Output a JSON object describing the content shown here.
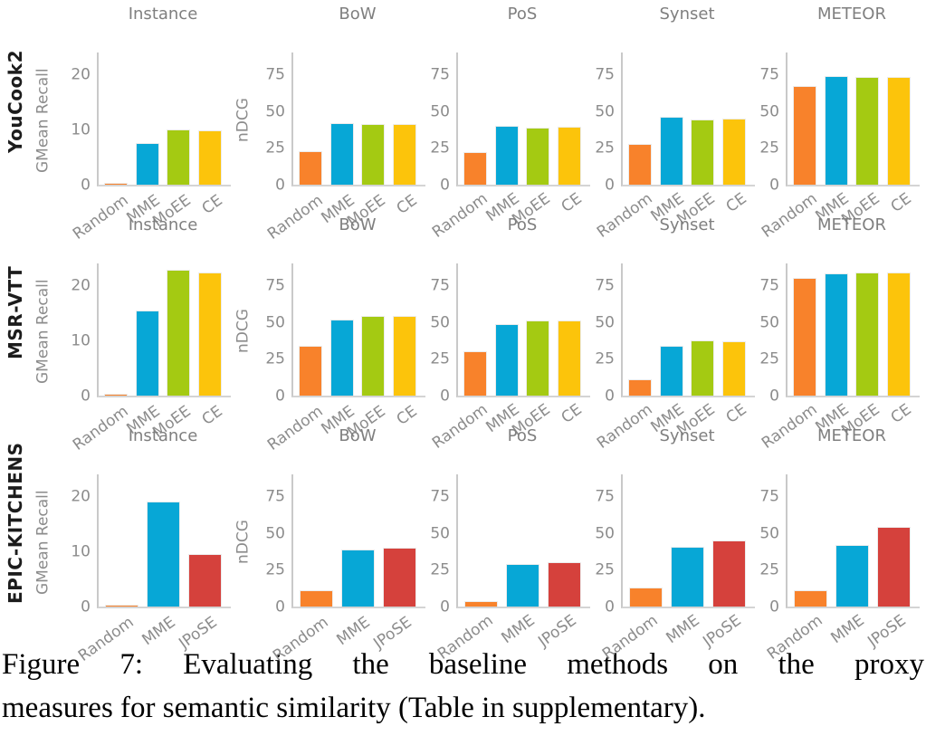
{
  "figure": {
    "col_titles": [
      "Instance",
      "BoW",
      "PoS",
      "Synset",
      "METEOR"
    ],
    "row_labels": [
      "YouCook2",
      "MSR-VTT",
      "EPIC-KITCHENS"
    ],
    "palette": {
      "Random": "#f8822b",
      "MME": "#07a7d6",
      "MoEE": "#a4ca12",
      "CE": "#fcc40b",
      "JPoSE": "#d5413c"
    },
    "axis_color": "#c9c9c9",
    "text_color": "#8c8c8c"
  },
  "chart_data": {
    "type": "bar",
    "legend": "none",
    "grid": false,
    "instance_axis": {
      "ylabel": "GMean Recall",
      "ylim": [
        0,
        24
      ],
      "yticks": [
        0,
        10,
        20
      ]
    },
    "ndcg_axis": {
      "ylabel": "nDCG",
      "ylim": [
        0,
        90
      ],
      "yticks": [
        0,
        25,
        50,
        75
      ]
    },
    "rows": [
      {
        "dataset": "YouCook2",
        "categories": [
          "Random",
          "MME",
          "MoEE",
          "CE"
        ],
        "charts": [
          {
            "title": "Instance",
            "ylabel": "GMean Recall",
            "values": [
              0.3,
              7.5,
              10,
              9.8
            ]
          },
          {
            "title": "BoW",
            "ylabel": "nDCG",
            "values": [
              23,
              42,
              41.5,
              41.5
            ]
          },
          {
            "title": "PoS",
            "ylabel": "",
            "values": [
              22,
              40,
              39,
              39.5
            ]
          },
          {
            "title": "Synset",
            "ylabel": "",
            "values": [
              28,
              46,
              44.5,
              45
            ]
          },
          {
            "title": "METEOR",
            "ylabel": "",
            "values": [
              67,
              74,
              73.5,
              73.5
            ]
          }
        ]
      },
      {
        "dataset": "MSR-VTT",
        "categories": [
          "Random",
          "MME",
          "MoEE",
          "CE"
        ],
        "charts": [
          {
            "title": "Instance",
            "ylabel": "GMean Recall",
            "values": [
              0.2,
              15.5,
              22.8,
              22.4
            ]
          },
          {
            "title": "BoW",
            "ylabel": "nDCG",
            "values": [
              34,
              52,
              54.5,
              54.5
            ]
          },
          {
            "title": "PoS",
            "ylabel": "",
            "values": [
              30,
              49,
              51,
              51
            ]
          },
          {
            "title": "Synset",
            "ylabel": "",
            "values": [
              11,
              34,
              37.5,
              37
            ]
          },
          {
            "title": "METEOR",
            "ylabel": "",
            "values": [
              80,
              83,
              84,
              84
            ]
          }
        ]
      },
      {
        "dataset": "EPIC-KITCHENS",
        "categories": [
          "Random",
          "MME",
          "JPoSE"
        ],
        "charts": [
          {
            "title": "Instance",
            "ylabel": "GMean Recall",
            "values": [
              0.2,
              19,
              9.5
            ]
          },
          {
            "title": "BoW",
            "ylabel": "nDCG",
            "values": [
              11,
              39,
              40
            ]
          },
          {
            "title": "PoS",
            "ylabel": "",
            "values": [
              4,
              29,
              30
            ]
          },
          {
            "title": "Synset",
            "ylabel": "",
            "values": [
              13,
              41,
              45
            ]
          },
          {
            "title": "METEOR",
            "ylabel": "",
            "values": [
              11,
              42,
              54
            ]
          }
        ]
      }
    ]
  },
  "caption": {
    "line1": "Figure 7:  Evaluating the baseline methods on the proxy",
    "line2": "measures for semantic similarity (Table in supplementary)."
  }
}
